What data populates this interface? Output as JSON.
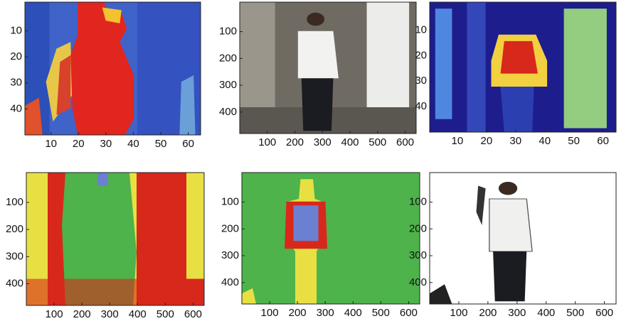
{
  "chart_data": [
    {
      "type": "image",
      "xlim": [
        0.5,
        64.5
      ],
      "ylim": [
        -1,
        50
      ],
      "xticks": [
        10,
        20,
        30,
        40,
        50,
        60
      ],
      "yticks": [
        10,
        20,
        30,
        40
      ]
    },
    {
      "type": "image",
      "xlim": [
        0,
        640
      ],
      "ylim": [
        -10,
        480
      ],
      "xticks": [
        100,
        200,
        300,
        400,
        500,
        600
      ],
      "yticks": [
        100,
        200,
        300,
        400
      ]
    },
    {
      "type": "image",
      "xlim": [
        0.5,
        64.5
      ],
      "ylim": [
        -1,
        50
      ],
      "xticks": [
        10,
        20,
        30,
        40,
        50,
        60
      ],
      "yticks": [
        10,
        20,
        30,
        40
      ]
    },
    {
      "type": "image",
      "xlim": [
        0,
        640
      ],
      "ylim": [
        -10,
        480
      ],
      "xticks": [
        100,
        200,
        300,
        400,
        500,
        600
      ],
      "yticks": [
        100,
        200,
        300,
        400
      ]
    },
    {
      "type": "image",
      "xlim": [
        0,
        640
      ],
      "ylim": [
        -10,
        480
      ],
      "xticks": [
        100,
        200,
        300,
        400,
        500,
        600
      ],
      "yticks": [
        100,
        200,
        300,
        400
      ]
    },
    {
      "type": "image",
      "xlim": [
        0,
        640
      ],
      "ylim": [
        -10,
        480
      ],
      "xticks": [
        100,
        200,
        300,
        400,
        500,
        600
      ],
      "yticks": [
        100,
        200,
        300,
        400
      ]
    }
  ]
}
